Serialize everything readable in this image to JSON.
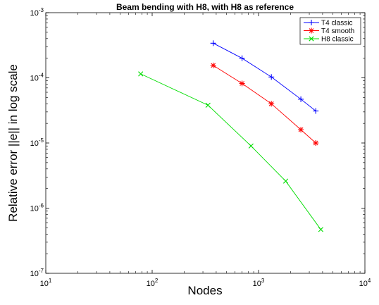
{
  "chart_data": {
    "type": "line",
    "title": "Beam bending with H8, with H8 as reference",
    "xlabel": "Nodes",
    "ylabel": "Relative error ||e|| in log scale",
    "xscale": "log",
    "yscale": "log",
    "xlim": [
      10,
      10000
    ],
    "ylim": [
      1e-07,
      0.001
    ],
    "grid": false,
    "legend_position": "top-right",
    "x_ticks": [
      {
        "base": "10",
        "exp": "1",
        "value": 10
      },
      {
        "base": "10",
        "exp": "2",
        "value": 100
      },
      {
        "base": "10",
        "exp": "3",
        "value": 1000
      },
      {
        "base": "10",
        "exp": "4",
        "value": 10000
      }
    ],
    "y_ticks": [
      {
        "base": "10",
        "exp": "-7",
        "value": 1e-07
      },
      {
        "base": "10",
        "exp": "-6",
        "value": 1e-06
      },
      {
        "base": "10",
        "exp": "-5",
        "value": 1e-05
      },
      {
        "base": "10",
        "exp": "-4",
        "value": 0.0001
      },
      {
        "base": "10",
        "exp": "-3",
        "value": 0.001
      }
    ],
    "series": [
      {
        "name": "T4 classic",
        "color": "#0000ff",
        "marker": "plus",
        "x": [
          375,
          700,
          1320,
          2500,
          3450
        ],
        "y": [
          0.00034,
          0.0002,
          0.000103,
          4.7e-05,
          3.1e-05
        ]
      },
      {
        "name": "T4 smooth",
        "color": "#ff0000",
        "marker": "asterisk",
        "x": [
          375,
          700,
          1320,
          2500,
          3450
        ],
        "y": [
          0.000155,
          8.2e-05,
          4e-05,
          1.6e-05,
          1e-05
        ]
      },
      {
        "name": "H8 classic",
        "color": "#00dd00",
        "marker": "x",
        "x": [
          78,
          335,
          850,
          1800,
          3850
        ],
        "y": [
          0.000115,
          3.8e-05,
          9e-06,
          2.6e-06,
          4.7e-07
        ]
      }
    ]
  }
}
